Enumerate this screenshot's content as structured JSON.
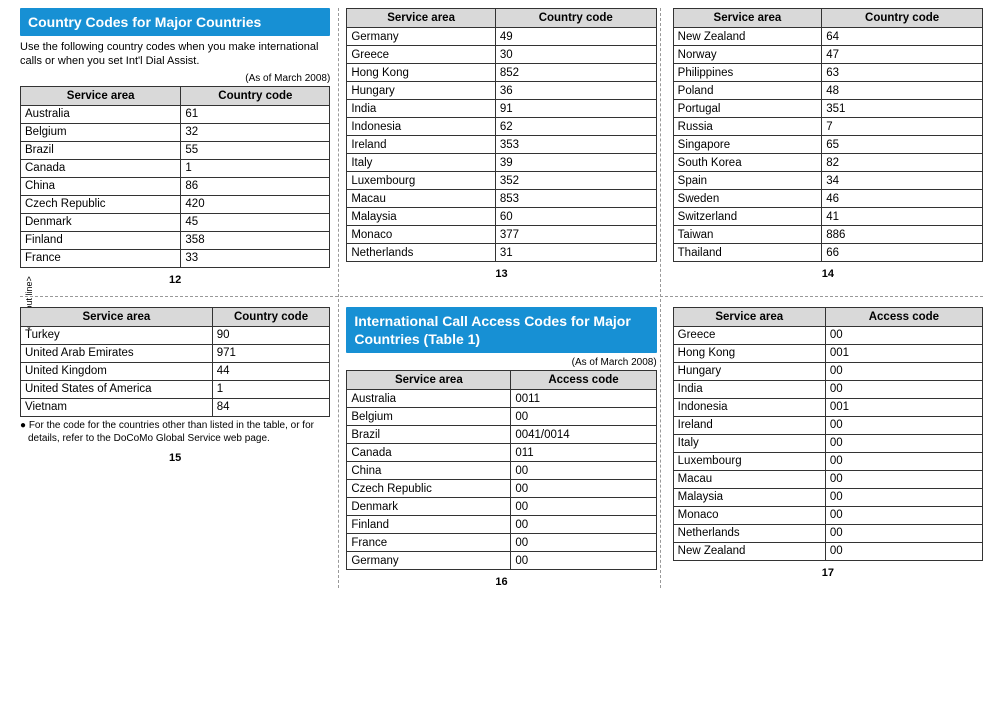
{
  "cutout_label": "<Cutout line>",
  "panels": {
    "p12": {
      "title": "Country Codes for Major Countries",
      "intro": "Use the following country codes when you make international calls or when you set Int'l Dial Assist.",
      "asof": "(As of March 2008)",
      "headers": [
        "Service area",
        "Country code"
      ],
      "rows": [
        [
          "Australia",
          "61"
        ],
        [
          "Belgium",
          "32"
        ],
        [
          "Brazil",
          "55"
        ],
        [
          "Canada",
          "1"
        ],
        [
          "China",
          "86"
        ],
        [
          "Czech Republic",
          "420"
        ],
        [
          "Denmark",
          "45"
        ],
        [
          "Finland",
          "358"
        ],
        [
          "France",
          "33"
        ]
      ],
      "page": "12"
    },
    "p13": {
      "headers": [
        "Service area",
        "Country code"
      ],
      "rows": [
        [
          "Germany",
          "49"
        ],
        [
          "Greece",
          "30"
        ],
        [
          "Hong Kong",
          "852"
        ],
        [
          "Hungary",
          "36"
        ],
        [
          "India",
          "91"
        ],
        [
          "Indonesia",
          "62"
        ],
        [
          "Ireland",
          "353"
        ],
        [
          "Italy",
          "39"
        ],
        [
          "Luxembourg",
          "352"
        ],
        [
          "Macau",
          "853"
        ],
        [
          "Malaysia",
          "60"
        ],
        [
          "Monaco",
          "377"
        ],
        [
          "Netherlands",
          "31"
        ]
      ],
      "page": "13"
    },
    "p14": {
      "headers": [
        "Service area",
        "Country code"
      ],
      "rows": [
        [
          "New Zealand",
          "64"
        ],
        [
          "Norway",
          "47"
        ],
        [
          "Philippines",
          "63"
        ],
        [
          "Poland",
          "48"
        ],
        [
          "Portugal",
          "351"
        ],
        [
          "Russia",
          "7"
        ],
        [
          "Singapore",
          "65"
        ],
        [
          "South Korea",
          "82"
        ],
        [
          "Spain",
          "34"
        ],
        [
          "Sweden",
          "46"
        ],
        [
          "Switzerland",
          "41"
        ],
        [
          "Taiwan",
          "886"
        ],
        [
          "Thailand",
          "66"
        ]
      ],
      "page": "14"
    },
    "p15": {
      "headers": [
        "Service area",
        "Country code"
      ],
      "rows": [
        [
          "Turkey",
          "90"
        ],
        [
          "United Arab Emirates",
          "971"
        ],
        [
          "United Kingdom",
          "44"
        ],
        [
          "United States of America",
          "1"
        ],
        [
          "Vietnam",
          "84"
        ]
      ],
      "footnote": "● For the code for the countries other than listed in the table, or for details, refer to the DoCoMo Global Service web page.",
      "page": "15"
    },
    "p16": {
      "title": "International Call Access Codes for Major Countries (Table 1)",
      "asof": "(As of March 2008)",
      "headers": [
        "Service area",
        "Access code"
      ],
      "rows": [
        [
          "Australia",
          "0011"
        ],
        [
          "Belgium",
          "00"
        ],
        [
          "Brazil",
          "0041/0014"
        ],
        [
          "Canada",
          "011"
        ],
        [
          "China",
          "00"
        ],
        [
          "Czech Republic",
          "00"
        ],
        [
          "Denmark",
          "00"
        ],
        [
          "Finland",
          "00"
        ],
        [
          "France",
          "00"
        ],
        [
          "Germany",
          "00"
        ]
      ],
      "page": "16"
    },
    "p17": {
      "headers": [
        "Service area",
        "Access code"
      ],
      "rows": [
        [
          "Greece",
          "00"
        ],
        [
          "Hong Kong",
          "001"
        ],
        [
          "Hungary",
          "00"
        ],
        [
          "India",
          "00"
        ],
        [
          "Indonesia",
          "001"
        ],
        [
          "Ireland",
          "00"
        ],
        [
          "Italy",
          "00"
        ],
        [
          "Luxembourg",
          "00"
        ],
        [
          "Macau",
          "00"
        ],
        [
          "Malaysia",
          "00"
        ],
        [
          "Monaco",
          "00"
        ],
        [
          "Netherlands",
          "00"
        ],
        [
          "New Zealand",
          "00"
        ]
      ],
      "page": "17"
    }
  }
}
